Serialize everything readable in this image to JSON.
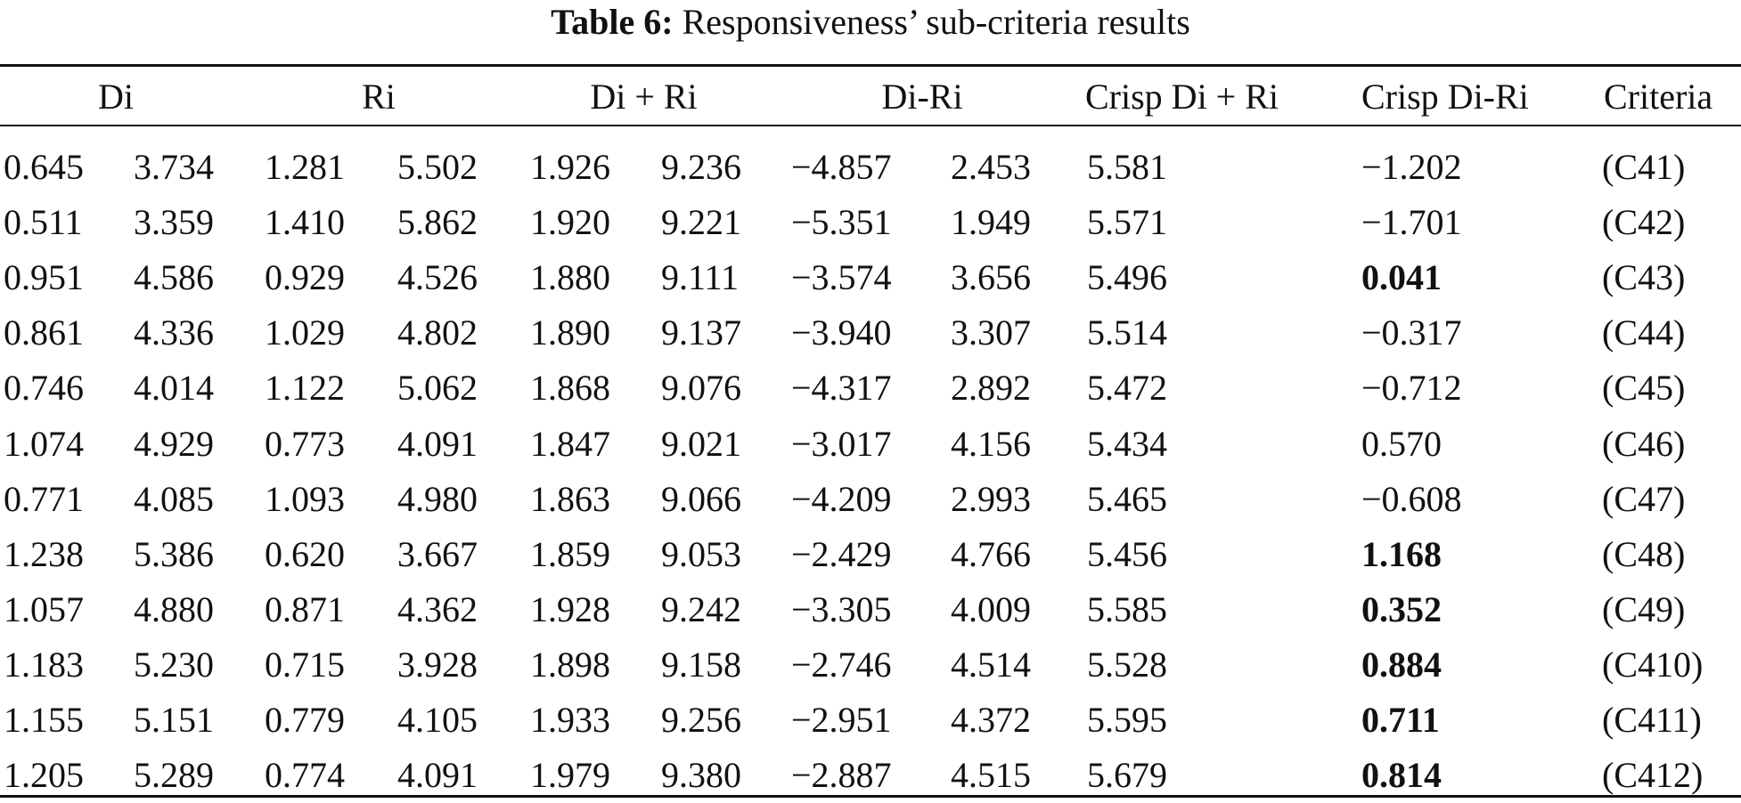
{
  "caption": {
    "label": "Table 6:",
    "text": "Responsiveness’ sub-criteria results"
  },
  "headers": [
    "Di",
    "Ri",
    "Di + Ri",
    "Di-Ri",
    "Crisp Di + Ri",
    "Crisp Di-Ri",
    "Criteria"
  ],
  "rows": [
    {
      "di_l": "0.645",
      "di_u": "3.734",
      "ri_l": "1.281",
      "ri_u": "5.502",
      "sum_l": "1.926",
      "sum_u": "9.236",
      "diff_l": "−4.857",
      "diff_u": "2.453",
      "crisp_sum": "5.581",
      "crisp_diff": "−1.202",
      "crisp_diff_bold": false,
      "criteria": "(C41)"
    },
    {
      "di_l": "0.511",
      "di_u": "3.359",
      "ri_l": "1.410",
      "ri_u": "5.862",
      "sum_l": "1.920",
      "sum_u": "9.221",
      "diff_l": "−5.351",
      "diff_u": "1.949",
      "crisp_sum": "5.571",
      "crisp_diff": "−1.701",
      "crisp_diff_bold": false,
      "criteria": "(C42)"
    },
    {
      "di_l": "0.951",
      "di_u": "4.586",
      "ri_l": "0.929",
      "ri_u": "4.526",
      "sum_l": "1.880",
      "sum_u": "9.111",
      "diff_l": "−3.574",
      "diff_u": "3.656",
      "crisp_sum": "5.496",
      "crisp_diff": "0.041",
      "crisp_diff_bold": true,
      "criteria": "(C43)"
    },
    {
      "di_l": "0.861",
      "di_u": "4.336",
      "ri_l": "1.029",
      "ri_u": "4.802",
      "sum_l": "1.890",
      "sum_u": "9.137",
      "diff_l": "−3.940",
      "diff_u": "3.307",
      "crisp_sum": "5.514",
      "crisp_diff": "−0.317",
      "crisp_diff_bold": false,
      "criteria": "(C44)"
    },
    {
      "di_l": "0.746",
      "di_u": "4.014",
      "ri_l": "1.122",
      "ri_u": "5.062",
      "sum_l": "1.868",
      "sum_u": "9.076",
      "diff_l": "−4.317",
      "diff_u": "2.892",
      "crisp_sum": "5.472",
      "crisp_diff": "−0.712",
      "crisp_diff_bold": false,
      "criteria": "(C45)"
    },
    {
      "di_l": "1.074",
      "di_u": "4.929",
      "ri_l": "0.773",
      "ri_u": "4.091",
      "sum_l": "1.847",
      "sum_u": "9.021",
      "diff_l": "−3.017",
      "diff_u": "4.156",
      "crisp_sum": "5.434",
      "crisp_diff": "0.570",
      "crisp_diff_bold": false,
      "criteria": "(C46)"
    },
    {
      "di_l": "0.771",
      "di_u": "4.085",
      "ri_l": "1.093",
      "ri_u": "4.980",
      "sum_l": "1.863",
      "sum_u": "9.066",
      "diff_l": "−4.209",
      "diff_u": "2.993",
      "crisp_sum": "5.465",
      "crisp_diff": "−0.608",
      "crisp_diff_bold": false,
      "criteria": "(C47)"
    },
    {
      "di_l": "1.238",
      "di_u": "5.386",
      "ri_l": "0.620",
      "ri_u": "3.667",
      "sum_l": "1.859",
      "sum_u": "9.053",
      "diff_l": "−2.429",
      "diff_u": "4.766",
      "crisp_sum": "5.456",
      "crisp_diff": "1.168",
      "crisp_diff_bold": true,
      "criteria": "(C48)"
    },
    {
      "di_l": "1.057",
      "di_u": "4.880",
      "ri_l": "0.871",
      "ri_u": "4.362",
      "sum_l": "1.928",
      "sum_u": "9.242",
      "diff_l": "−3.305",
      "diff_u": "4.009",
      "crisp_sum": "5.585",
      "crisp_diff": "0.352",
      "crisp_diff_bold": true,
      "criteria": "(C49)"
    },
    {
      "di_l": "1.183",
      "di_u": "5.230",
      "ri_l": "0.715",
      "ri_u": "3.928",
      "sum_l": "1.898",
      "sum_u": "9.158",
      "diff_l": "−2.746",
      "diff_u": "4.514",
      "crisp_sum": "5.528",
      "crisp_diff": "0.884",
      "crisp_diff_bold": true,
      "criteria": "(C410)"
    },
    {
      "di_l": "1.155",
      "di_u": "5.151",
      "ri_l": "0.779",
      "ri_u": "4.105",
      "sum_l": "1.933",
      "sum_u": "9.256",
      "diff_l": "−2.951",
      "diff_u": "4.372",
      "crisp_sum": "5.595",
      "crisp_diff": "0.711",
      "crisp_diff_bold": true,
      "criteria": "(C411)"
    },
    {
      "di_l": "1.205",
      "di_u": "5.289",
      "ri_l": "0.774",
      "ri_u": "4.091",
      "sum_l": "1.979",
      "sum_u": "9.380",
      "diff_l": "−2.887",
      "diff_u": "4.515",
      "crisp_sum": "5.679",
      "crisp_diff": "0.814",
      "crisp_diff_bold": true,
      "criteria": "(C412)"
    }
  ]
}
